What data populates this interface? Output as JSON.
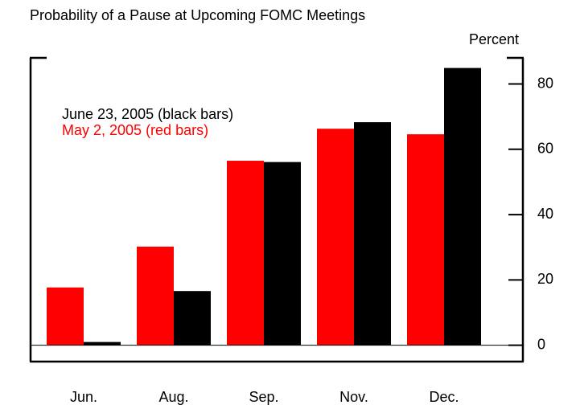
{
  "chart_data": {
    "type": "bar",
    "title": "Probability of a Pause at Upcoming FOMC Meetings",
    "y_label": "Percent",
    "categories": [
      "Jun.",
      "Aug.",
      "Sep.",
      "Nov.",
      "Dec."
    ],
    "series": [
      {
        "name": "May 2, 2005 (red bars)",
        "color": "#ff0000",
        "values": [
          17.7,
          30.2,
          56.5,
          66.3,
          64.6
        ]
      },
      {
        "name": "June 23, 2005 (black bars)",
        "color": "#000000",
        "values": [
          1,
          16.6,
          56.1,
          68.3,
          84.9
        ]
      }
    ],
    "ylim": [
      -5,
      88
    ],
    "yticks": [
      0,
      20,
      40,
      60,
      80
    ]
  }
}
